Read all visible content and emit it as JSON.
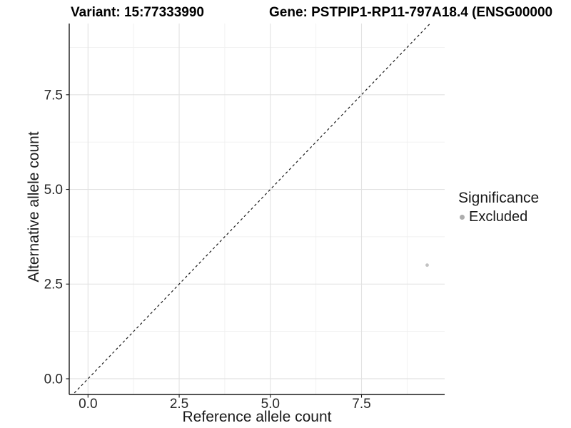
{
  "chart_data": {
    "type": "scatter",
    "titles": {
      "left": "Variant: 15:77333990",
      "right": "Gene: PSTPIP1-RP11-797A18.4 (ENSG00000"
    },
    "xlabel": "Reference allele count",
    "ylabel": "Alternative allele count",
    "x_ticks": [
      0,
      2.5,
      5,
      7.5
    ],
    "x_tick_labels": [
      "0.0",
      "2.5",
      "5.0",
      "7.5"
    ],
    "y_ticks": [
      0,
      2.5,
      5,
      7.5
    ],
    "y_tick_labels": [
      "0.0",
      "2.5",
      "5.0",
      "7.5"
    ],
    "x_minor_ticks": [
      1.25,
      3.75,
      6.25,
      8.75
    ],
    "y_minor_ticks": [
      1.25,
      3.75,
      6.25,
      8.75
    ],
    "xlim": [
      -0.515,
      9.78
    ],
    "ylim": [
      -0.415,
      9.38
    ],
    "grid": true,
    "abline": {
      "slope": 1,
      "intercept": 0,
      "style": "dashed"
    },
    "series": [
      {
        "name": "Excluded",
        "color": "#c2c2c2",
        "points": [
          {
            "x": 9.3,
            "y": 3.0
          }
        ]
      }
    ],
    "legend": {
      "title": "Significance",
      "position": "right",
      "items": [
        {
          "label": "Excluded",
          "color": "#adadad"
        }
      ]
    },
    "colors": {
      "grid_major": "#e2e2e2",
      "grid_minor": "#f0f0f0",
      "axis": "#1a1a1a",
      "abline": "#1a1a1a",
      "tick_label": "#262626"
    }
  }
}
